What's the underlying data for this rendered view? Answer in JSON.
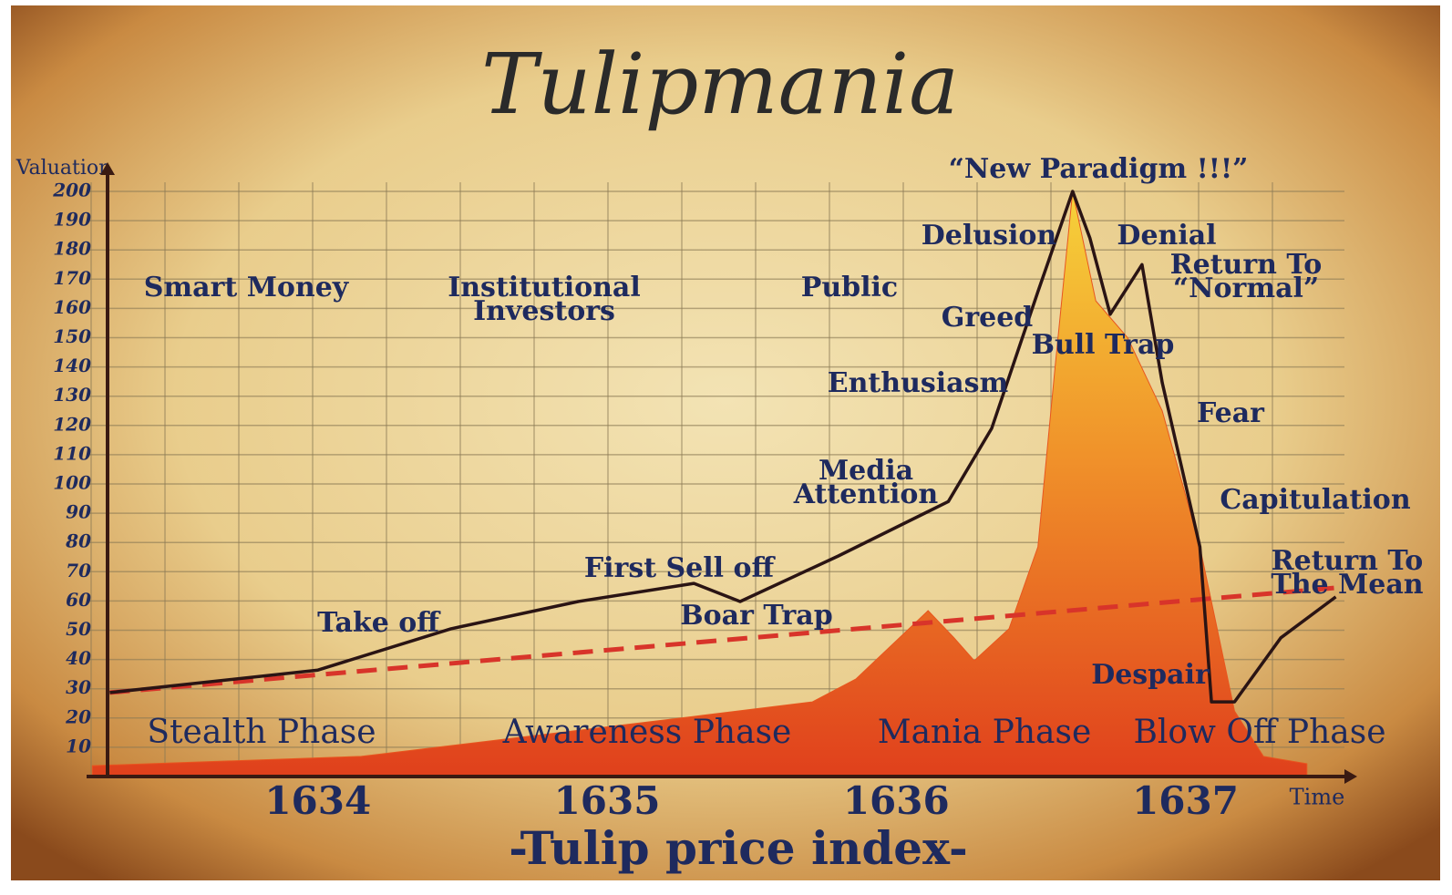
{
  "chart_data": {
    "type": "line",
    "title": "Tulipmania",
    "subtitle": "-Tulip price index-",
    "y_label": "Valuation",
    "x_label": "Time",
    "xlim": [
      1633.2,
      1637.55
    ],
    "xticks": [
      1634,
      1635,
      1636,
      1637
    ],
    "ylim": [
      0,
      205
    ],
    "yticks": [
      10,
      20,
      30,
      40,
      50,
      60,
      70,
      80,
      90,
      100,
      110,
      120,
      130,
      140,
      150,
      160,
      170,
      180,
      190,
      200
    ],
    "grid": true,
    "series": [
      {
        "kind": "area",
        "color": "#e8561f",
        "x": [
          1633.22,
          1634.15,
          1635.33,
          1635.71,
          1635.86,
          1636.11,
          1636.2,
          1636.27,
          1636.39,
          1636.49,
          1636.55,
          1636.61,
          1636.69,
          1636.8,
          1636.92,
          1637.05,
          1637.17,
          1637.27,
          1637.42
        ],
        "values": [
          3.7,
          6.9,
          20.9,
          25.5,
          33.3,
          56.7,
          47.4,
          39.6,
          50.5,
          78.5,
          140.8,
          200,
          162.6,
          150,
          125,
          78.5,
          22.4,
          6.9,
          4.4
        ]
      },
      {
        "kind": "dashed",
        "color": "#d8342a",
        "x": [
          1633.28,
          1637.52
        ],
        "values": [
          28.7,
          64.5
        ]
      },
      {
        "kind": "line",
        "color": "#2a1414",
        "x": [
          1633.28,
          1634.0,
          1634.46,
          1634.9,
          1635.3,
          1635.46,
          1635.8,
          1636.18,
          1636.33,
          1636.49,
          1636.61,
          1636.67,
          1636.74,
          1636.85,
          1636.92,
          1637.05,
          1637.09,
          1637.17,
          1637.33,
          1637.52
        ],
        "values": [
          28.7,
          36.4,
          50.5,
          59.8,
          66,
          59.8,
          75.4,
          94,
          119,
          165.7,
          200,
          184,
          158,
          175,
          134.6,
          78.5,
          25.5,
          25.5,
          47.4,
          61.4
        ]
      }
    ],
    "annotations": [
      "Smart Money",
      "Institutional Investors",
      "Public",
      "“New Paradigm !!!”",
      "Delusion",
      "Denial",
      "Return To “Normal”",
      "Greed",
      "Bull Trap",
      "Enthusiasm",
      "Fear",
      "Media Attention",
      "Capitulation",
      "Return To The Mean",
      "First Sell off",
      "Boar Trap",
      "Take off",
      "Despair"
    ],
    "phases": [
      "Stealth Phase",
      "Awareness Phase",
      "Mania Phase",
      "Blow Off Phase"
    ]
  }
}
